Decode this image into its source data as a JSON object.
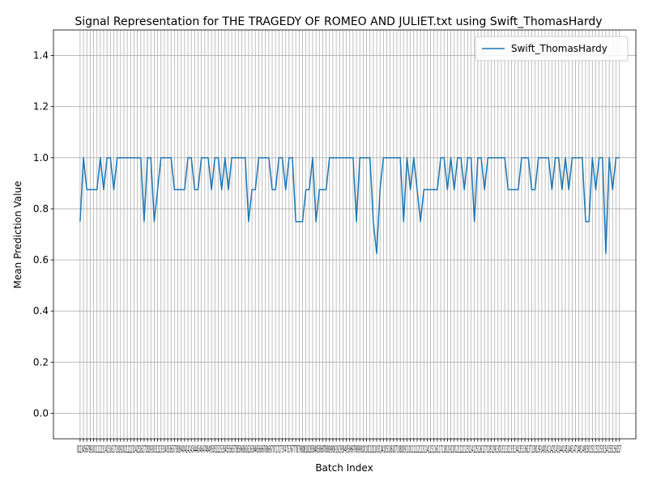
{
  "chart_data": {
    "type": "line",
    "title": "Signal Representation for THE TRAGEDY OF ROMEO AND JULIET.txt using Swift_ThomasHardy",
    "xlabel": "Batch Index",
    "ylabel": "Mean Prediction Value",
    "xlim": [
      -7.9,
      164.9
    ],
    "ylim": [
      -0.1,
      1.5
    ],
    "yticks": [
      0.0,
      0.2,
      0.4,
      0.6,
      0.8,
      1.0,
      1.2,
      1.4
    ],
    "ytick_labels": [
      "0.0",
      "0.2",
      "0.4",
      "0.6",
      "0.8",
      "1.0",
      "1.2",
      "1.4"
    ],
    "x_tick_step": 1,
    "x_tick_label_text": "0123456789101112131415161718192021222324252627282930313233343536373839404142434445464748495051525354555657585960616263646566676869707172737475767778798081828384858687888990919293949596979899100101102103104105106107108109110111112113114115116117118119120121122123124125126127128129130131132133134135136137138139140141142143144145146147148149150151152153154155156157",
    "grid": true,
    "legend_position": "upper right",
    "color": "#1f77b4",
    "series": [
      {
        "name": "Swift_ThomasHardy",
        "x_start": 0,
        "values": [
          0.75,
          1.0,
          0.875,
          0.875,
          0.875,
          0.875,
          1.0,
          0.875,
          1.0,
          1.0,
          0.875,
          1.0,
          1.0,
          1.0,
          1.0,
          1.0,
          1.0,
          1.0,
          1.0,
          0.75,
          1.0,
          1.0,
          0.75,
          0.875,
          1.0,
          1.0,
          1.0,
          1.0,
          0.875,
          0.875,
          0.875,
          0.875,
          1.0,
          1.0,
          0.875,
          0.875,
          1.0,
          1.0,
          1.0,
          0.875,
          1.0,
          1.0,
          0.875,
          1.0,
          0.875,
          1.0,
          1.0,
          1.0,
          1.0,
          1.0,
          0.75,
          0.875,
          0.875,
          1.0,
          1.0,
          1.0,
          1.0,
          0.875,
          0.875,
          1.0,
          1.0,
          0.875,
          1.0,
          1.0,
          0.75,
          0.75,
          0.75,
          0.875,
          0.875,
          1.0,
          0.75,
          0.875,
          0.875,
          0.875,
          1.0,
          1.0,
          1.0,
          1.0,
          1.0,
          1.0,
          1.0,
          1.0,
          0.75,
          1.0,
          1.0,
          1.0,
          1.0,
          0.75,
          0.625,
          0.875,
          1.0,
          1.0,
          1.0,
          1.0,
          1.0,
          1.0,
          0.75,
          1.0,
          0.875,
          1.0,
          0.875,
          0.75,
          0.875,
          0.875,
          0.875,
          0.875,
          0.875,
          1.0,
          1.0,
          0.875,
          1.0,
          0.875,
          1.0,
          1.0,
          0.875,
          1.0,
          1.0,
          0.75,
          1.0,
          1.0,
          0.875,
          1.0,
          1.0,
          1.0,
          1.0,
          1.0,
          1.0,
          0.875,
          0.875,
          0.875,
          0.875,
          1.0,
          1.0,
          1.0,
          0.875,
          0.875,
          1.0,
          1.0,
          1.0,
          1.0,
          0.875,
          1.0,
          1.0,
          0.875,
          1.0,
          0.875,
          1.0,
          1.0,
          1.0,
          1.0,
          0.75,
          0.75,
          1.0,
          0.875,
          1.0,
          1.0,
          0.625,
          1.0,
          0.875,
          1.0,
          1.0
        ]
      }
    ]
  }
}
